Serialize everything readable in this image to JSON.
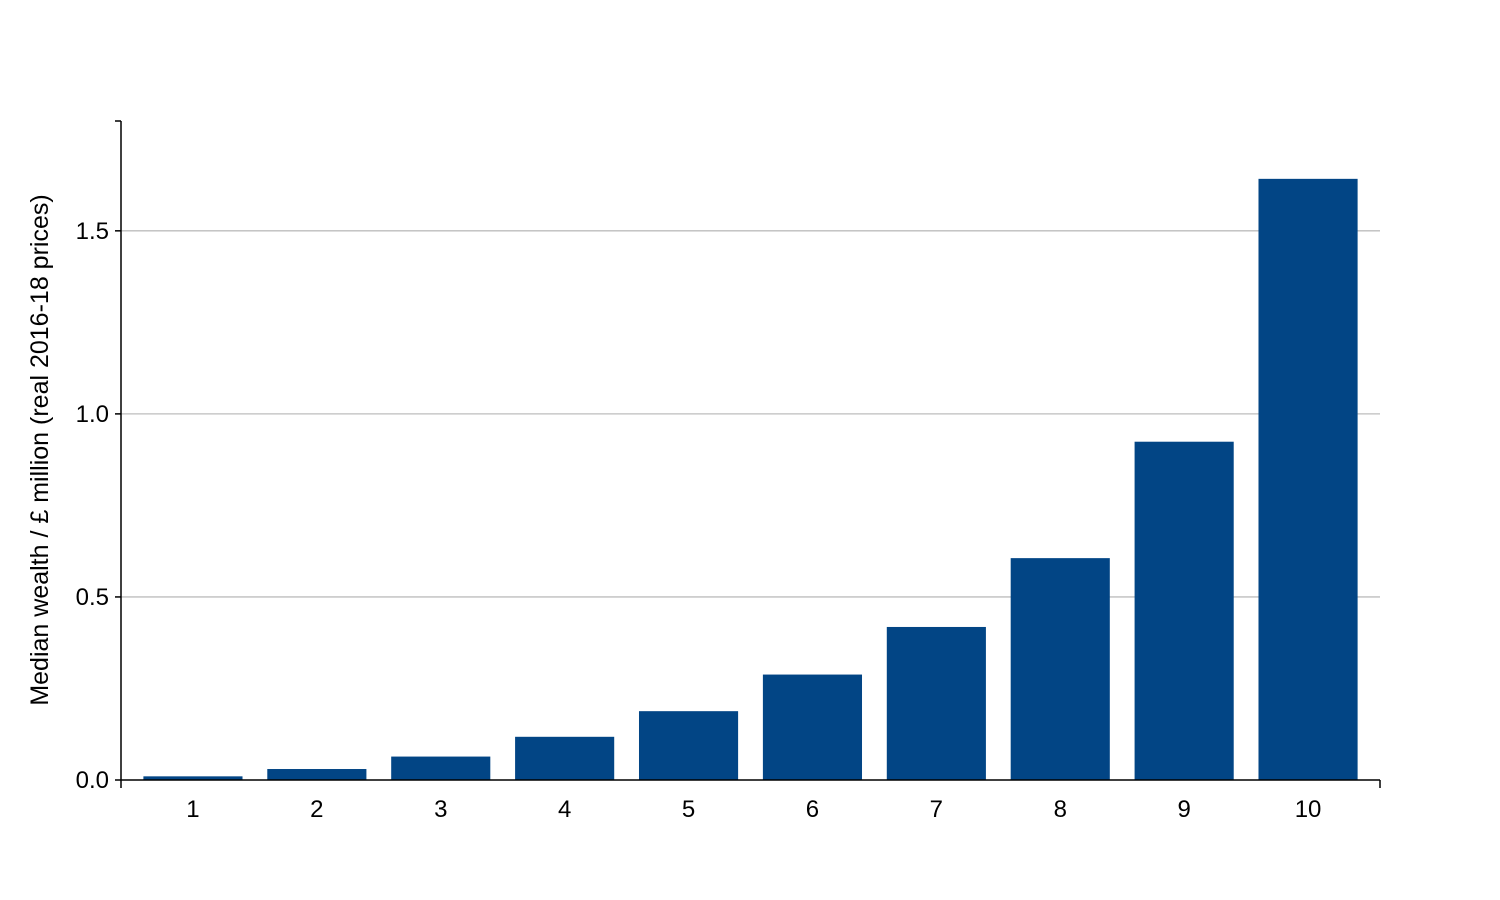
{
  "chart_data": {
    "type": "bar",
    "title": "",
    "xlabel": "",
    "ylabel": "Median wealth / £ million (real 2016-18 prices)",
    "categories": [
      "1",
      "2",
      "3",
      "4",
      "5",
      "6",
      "7",
      "8",
      "9",
      "10"
    ],
    "values": [
      0.01,
      0.03,
      0.064,
      0.118,
      0.188,
      0.288,
      0.418,
      0.606,
      0.924,
      1.642
    ],
    "ylim": [
      0,
      1.8
    ],
    "yticks": [
      0.0,
      0.5,
      1.0,
      1.5
    ],
    "ytick_labels": [
      "0.0",
      "0.5",
      "1.0",
      "1.5"
    ],
    "grid": "horizontal",
    "bar_color": "#024585",
    "grid_color": "#bdbdbd",
    "axis_color": "#000000"
  }
}
